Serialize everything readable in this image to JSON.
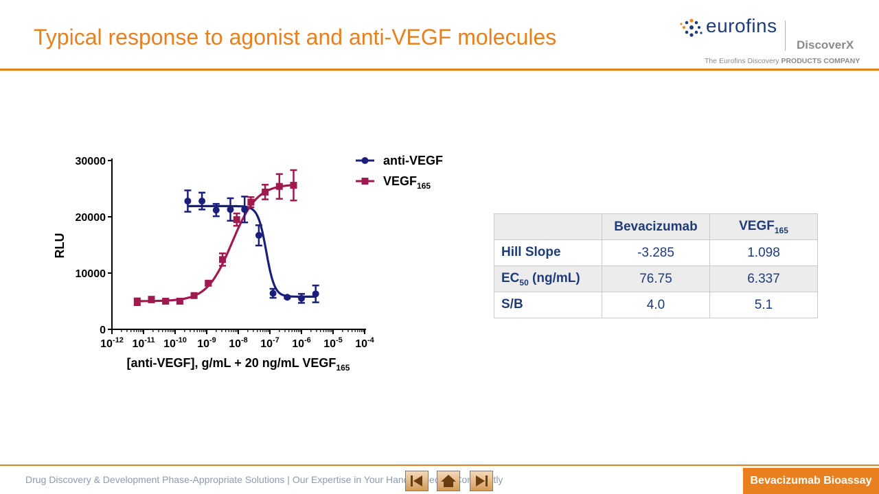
{
  "slide": {
    "title": "Typical response to agonist and anti-VEGF molecules"
  },
  "logo": {
    "brand": "eurofins",
    "sub_brand": "DiscoverX",
    "tagline_prefix": "The Eurofins Discovery",
    "tagline_bold": "PRODUCTS COMPANY"
  },
  "chart_data": {
    "type": "scatter",
    "title": "",
    "ylabel": "RLU",
    "xlabel": "[anti-VEGF], g/mL + 20 ng/mL VEGF",
    "xlabel_sub": "165",
    "xscale": "log",
    "xlim": [
      -12,
      -4
    ],
    "ylim": [
      0,
      30000
    ],
    "x_tick_exponents": [
      "-12",
      "-11",
      "-10",
      "-9",
      "-8",
      "-7",
      "-6",
      "-5",
      "-4"
    ],
    "x_tick_base": "10",
    "y_ticks": [
      0,
      10000,
      20000,
      30000
    ],
    "legend_position": "top-right",
    "series": [
      {
        "name": "anti-VEGF",
        "name_sub": "",
        "color": "#1b1f7a",
        "marker": "circle",
        "log_x": [
          -9.6,
          -9.15,
          -8.7,
          -8.25,
          -7.8,
          -7.35,
          -6.9,
          -6.45,
          -6.0,
          -5.55
        ],
        "y": [
          22800,
          22800,
          21200,
          21300,
          21300,
          16700,
          6400,
          5700,
          5500,
          6300
        ],
        "err": [
          1900,
          1500,
          1100,
          2000,
          2300,
          1800,
          800,
          200,
          800,
          1500
        ],
        "fit": {
          "bottom": 5800,
          "top": 21900,
          "log_ec50": -7.115,
          "hill": -3.285
        }
      },
      {
        "name": "VEGF",
        "name_sub": "165",
        "color": "#a0194f",
        "marker": "square",
        "log_x": [
          -11.2,
          -10.75,
          -10.3,
          -9.85,
          -9.4,
          -8.95,
          -8.5,
          -8.05,
          -7.6,
          -7.15,
          -6.7,
          -6.25
        ],
        "y": [
          4900,
          5300,
          5000,
          5000,
          6000,
          8200,
          12400,
          19500,
          22600,
          24400,
          25400,
          25600
        ],
        "err": [
          600,
          500,
          300,
          400,
          300,
          400,
          1100,
          1100,
          900,
          1300,
          2200,
          2700
        ],
        "fit": {
          "bottom": 5000,
          "top": 25800,
          "log_ec50": -8.2,
          "hill": 1.098
        }
      }
    ]
  },
  "table": {
    "header": {
      "c0": "",
      "c1": "Bevacizumab",
      "c2": "VEGF",
      "c2_sub": "165"
    },
    "rows": [
      {
        "label": "Hill Slope",
        "label_sub": "",
        "label_suffix": "",
        "v1": "-3.285",
        "v2": "1.098"
      },
      {
        "label": "EC",
        "label_sub": "50",
        "label_suffix": " (ng/mL)",
        "v1": "76.75",
        "v2": "6.337"
      },
      {
        "label": "S/B",
        "label_sub": "",
        "label_suffix": "",
        "v1": "4.0",
        "v2": "5.1"
      }
    ]
  },
  "footer": {
    "text": "Drug Discovery & Development Phase-Appropriate Solutions | Our Expertise in Your Hands - Decide Confidently",
    "badge": "Bevacizumab Bioassay",
    "nav_buttons": [
      "first-slide",
      "home",
      "last-slide"
    ]
  }
}
